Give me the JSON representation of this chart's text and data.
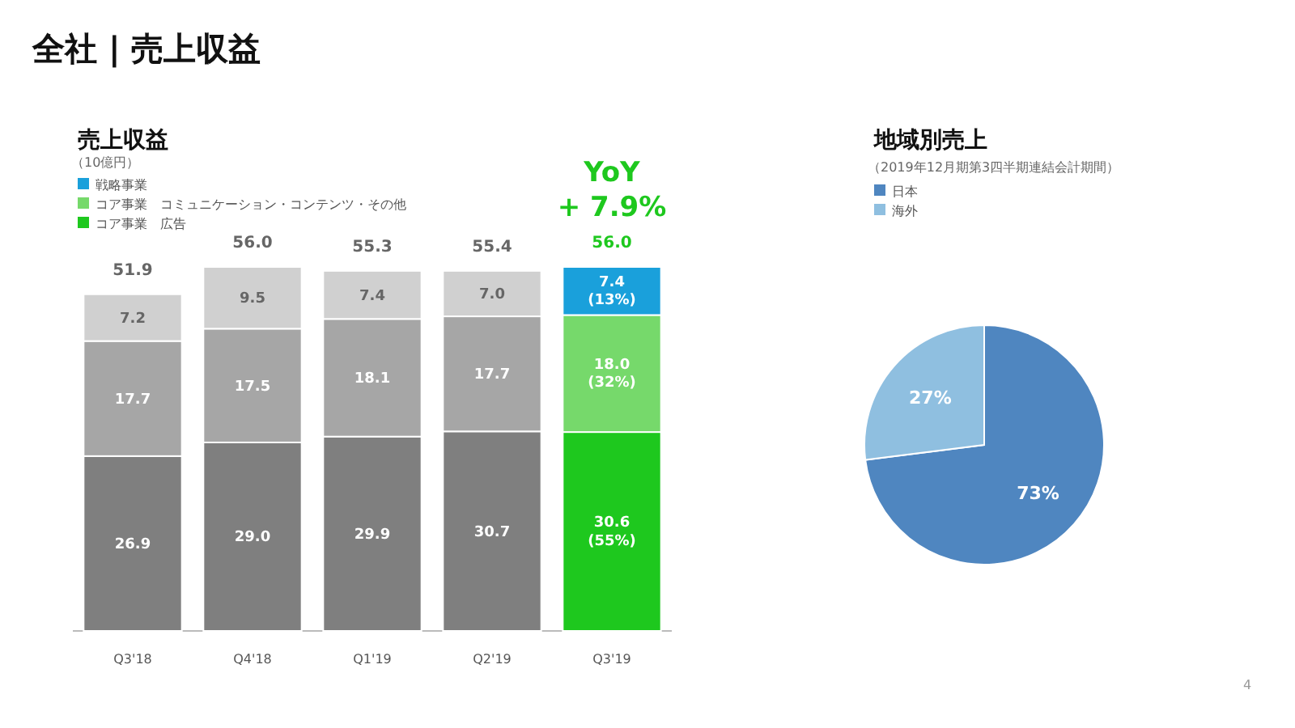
{
  "chart_data": [
    {
      "type": "bar",
      "stacked": true,
      "title": "売上収益",
      "subtitle": "（10億円）",
      "legend": "top left",
      "categories": [
        "Q3'18",
        "Q4'18",
        "Q1'19",
        "Q2'19",
        "Q3'19"
      ],
      "series": [
        {
          "name": "コア事業　広告",
          "color": "#1ec81e",
          "colors": [
            "#7f7f7f",
            "#7f7f7f",
            "#7f7f7f",
            "#7f7f7f",
            "#1ec81e"
          ],
          "values": [
            26.9,
            29.0,
            29.9,
            30.7,
            30.6
          ],
          "value_labels": [
            "26.9",
            "29.0",
            "29.9",
            "30.7",
            "30.6\n(55%)"
          ]
        },
        {
          "name": "コア事業　コミュニケーション・コンテンツ・その他",
          "color": "#76d96b",
          "colors": [
            "#a6a6a6",
            "#a6a6a6",
            "#a6a6a6",
            "#a6a6a6",
            "#76d96b"
          ],
          "values": [
            17.7,
            17.5,
            18.1,
            17.7,
            18.0
          ],
          "value_labels": [
            "17.7",
            "17.5",
            "18.1",
            "17.7",
            "18.0\n(32%)"
          ]
        },
        {
          "name": "戦略事業",
          "color": "#1aa0db",
          "colors": [
            "#d0d0d0",
            "#d0d0d0",
            "#d0d0d0",
            "#d0d0d0",
            "#1aa0db"
          ],
          "values": [
            7.2,
            9.5,
            7.4,
            7.0,
            7.4
          ],
          "value_labels": [
            "7.2",
            "9.5",
            "7.4",
            "7.0",
            "7.4\n(13%)"
          ]
        }
      ],
      "totals": [
        "51.9",
        "56.0",
        "55.3",
        "55.4",
        "56.0"
      ],
      "annotations": [
        "全社 | 売上収益",
        "YoY\n+ 7.9%",
        "4"
      ]
    },
    {
      "type": "pie",
      "title": "地域別売上",
      "subtitle": "（2019年12月期第3四半期連結会計期間）",
      "legend": "top left",
      "categories": [
        "日本",
        "海外"
      ],
      "values": [
        73,
        27
      ],
      "colors": [
        "#4f86c0",
        "#8fbfe0"
      ],
      "value_labels": [
        "73%",
        "27%"
      ]
    }
  ]
}
